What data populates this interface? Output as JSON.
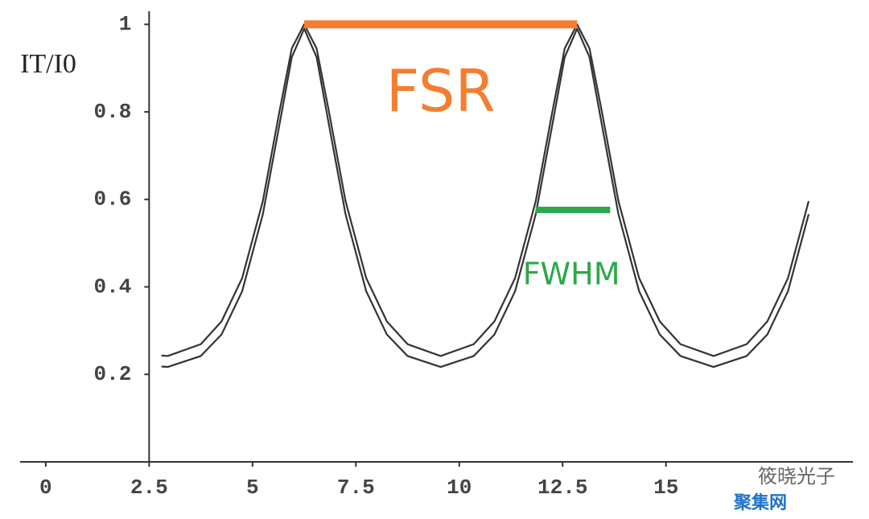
{
  "chart_data": {
    "type": "line",
    "y_label": "IT/I0",
    "x": [
      2.8,
      2.95,
      3.75,
      4.25,
      4.75,
      5.25,
      5.65,
      5.95,
      6.25,
      6.55,
      6.85,
      7.25,
      7.75,
      8.25,
      8.75,
      9.55,
      10.35,
      10.85,
      11.35,
      11.85,
      12.25,
      12.55,
      12.85,
      13.15,
      13.45,
      13.85,
      14.35,
      14.85,
      15.35,
      16.15,
      16.95,
      17.45,
      17.95,
      18.45
    ],
    "series": [
      {
        "color": "#333333",
        "values": [
          0.243,
          0.242,
          0.269,
          0.321,
          0.42,
          0.596,
          0.8,
          0.945,
          1,
          0.945,
          0.8,
          0.596,
          0.42,
          0.321,
          0.269,
          0.242,
          0.269,
          0.321,
          0.42,
          0.596,
          0.8,
          0.945,
          1,
          0.945,
          0.8,
          0.596,
          0.42,
          0.321,
          0.269,
          0.242,
          0.269,
          0.321,
          0.42,
          0.596
        ]
      },
      {
        "color": "#333333",
        "values": [
          0.218,
          0.217,
          0.242,
          0.291,
          0.39,
          0.566,
          0.77,
          0.925,
          0.99,
          0.925,
          0.77,
          0.566,
          0.39,
          0.291,
          0.242,
          0.217,
          0.242,
          0.291,
          0.39,
          0.566,
          0.77,
          0.925,
          0.99,
          0.925,
          0.77,
          0.566,
          0.39,
          0.291,
          0.242,
          0.217,
          0.242,
          0.291,
          0.39,
          0.566
        ]
      }
    ],
    "xlim": [
      -0.62,
      19.52
    ],
    "ylim": [
      0,
      1.03
    ],
    "xticks": [
      0,
      2.5,
      5,
      7.5,
      10,
      12.5,
      15
    ],
    "yticks": [
      0.2,
      0.4,
      0.6,
      0.8,
      1
    ],
    "y_axis_position": 2.5,
    "annotations": [
      {
        "text": "FSR",
        "x": [
          6.25,
          12.85
        ],
        "y": 1,
        "color": "#f47e30"
      },
      {
        "text": "FWHM",
        "x": [
          11.85,
          13.65
        ],
        "y": 0.576,
        "color": "#2ba84a"
      }
    ]
  },
  "watermark": {
    "name": "筱晓光子",
    "site": "聚集网"
  }
}
